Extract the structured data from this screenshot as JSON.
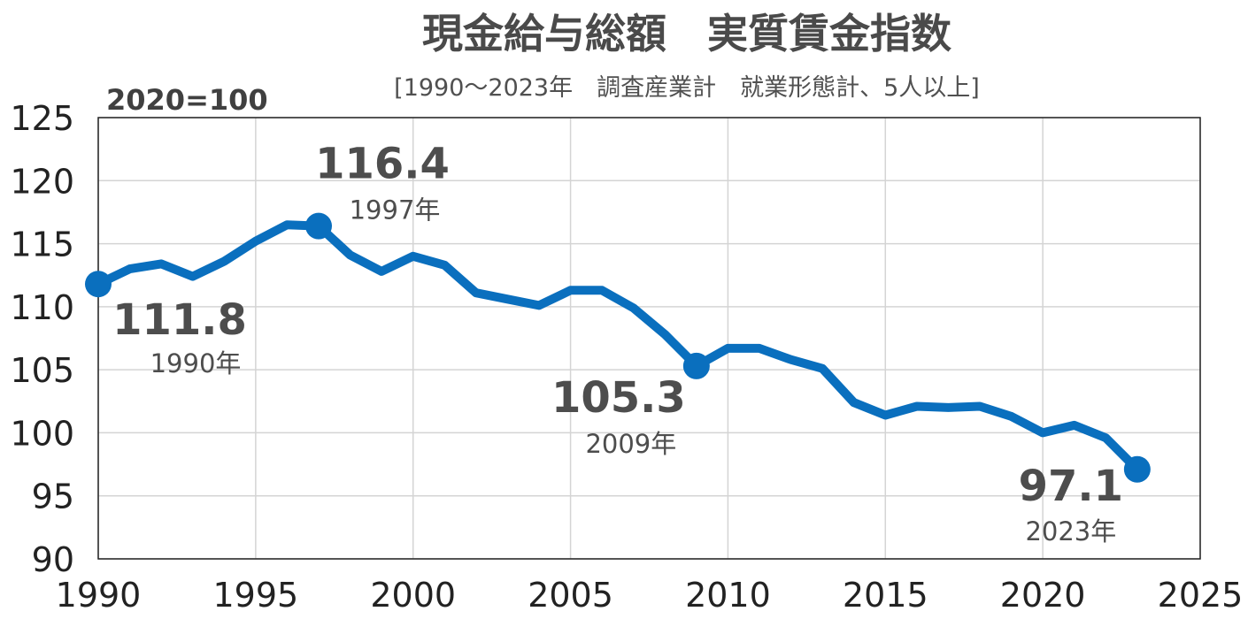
{
  "title": "現金給与総額　実質賃金指数",
  "subtitle": "[1990～2023年　調査産業計　就業形態計、5人以上]",
  "unit_label": "2020=100",
  "colors": {
    "line": "#0a6fbe",
    "grid": "#d4d4d4",
    "frame": "#222222",
    "text": "#4d4d4d"
  },
  "chart_data": {
    "type": "line",
    "title": "現金給与総額　実質賃金指数",
    "subtitle": "[1990～2023年　調査産業計　就業形態計、5人以上]",
    "xlabel": "",
    "ylabel": "2020=100",
    "xlim": [
      1990,
      2025
    ],
    "ylim": [
      90,
      125
    ],
    "x_ticks": [
      1990,
      1995,
      2000,
      2005,
      2010,
      2015,
      2020,
      2025
    ],
    "y_ticks": [
      90,
      95,
      100,
      105,
      110,
      115,
      120,
      125
    ],
    "grid": true,
    "legend": "none",
    "series": [
      {
        "x": [
          1990,
          1991,
          1992,
          1993,
          1994,
          1995,
          1996,
          1997,
          1998,
          1999,
          2000,
          2001,
          2002,
          2003,
          2004,
          2005,
          2006,
          2007,
          2008,
          2009,
          2010,
          2011,
          2012,
          2013,
          2014,
          2015,
          2016,
          2017,
          2018,
          2019,
          2020,
          2021,
          2022,
          2023
        ],
        "values": [
          111.8,
          113.0,
          113.4,
          112.4,
          113.6,
          115.2,
          116.5,
          116.4,
          114.1,
          112.8,
          114.0,
          113.3,
          111.1,
          110.6,
          110.1,
          111.3,
          111.3,
          109.9,
          107.8,
          105.3,
          106.7,
          106.7,
          105.8,
          105.1,
          102.4,
          101.4,
          102.1,
          102.0,
          102.1,
          101.3,
          100.0,
          100.6,
          99.6,
          97.1
        ]
      }
    ],
    "annotations": [
      {
        "value": "111.8",
        "year": "1990年",
        "x": 1990,
        "y": 111.8
      },
      {
        "value": "116.4",
        "year": "1997年",
        "x": 1997,
        "y": 116.4
      },
      {
        "value": "105.3",
        "year": "2009年",
        "x": 2009,
        "y": 105.3
      },
      {
        "value": "97.1",
        "year": "2023年",
        "x": 2023,
        "y": 97.1
      }
    ]
  }
}
